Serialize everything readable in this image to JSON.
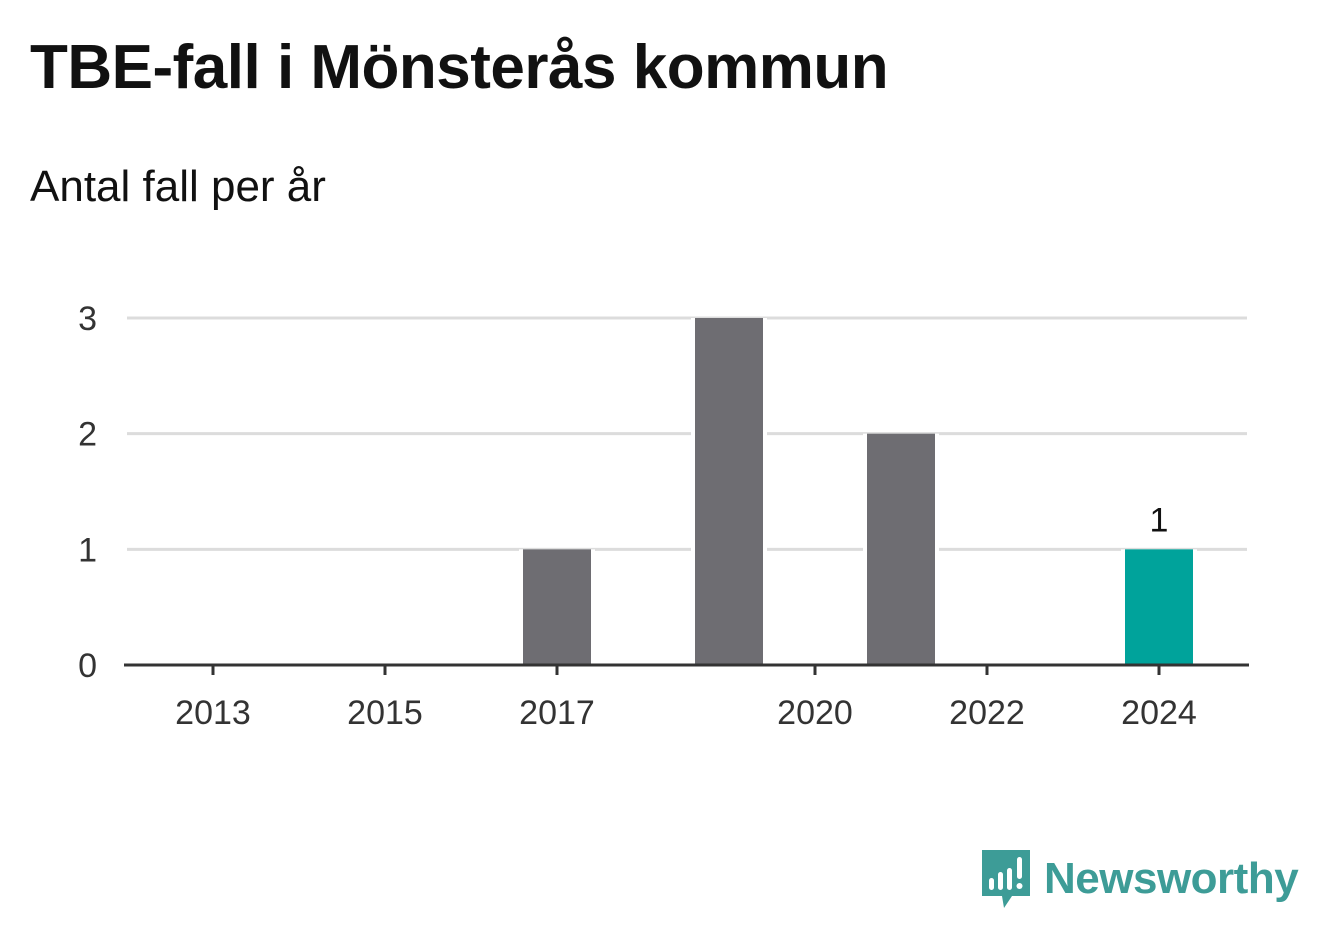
{
  "chart_data": {
    "type": "bar",
    "title": "TBE-fall i Mönsterås kommun",
    "subtitle": "Antal fall per år",
    "categories": [
      "2013",
      "2014",
      "2015",
      "2016",
      "2017",
      "2018",
      "2019",
      "2020",
      "2021",
      "2022",
      "2023",
      "2024"
    ],
    "values": [
      0,
      0,
      0,
      0,
      1,
      0,
      3,
      0,
      2,
      0,
      0,
      1
    ],
    "x_tick_labels": [
      "2013",
      "2015",
      "2017",
      "2020",
      "2022",
      "2024"
    ],
    "y_ticks": [
      "0",
      "1",
      "2",
      "3"
    ],
    "ylim": [
      0,
      3
    ],
    "grid": true,
    "highlight_category": "2024",
    "highlight_value_label": "1",
    "colors": {
      "bar": "#6e6d72",
      "highlight": "#00a39b",
      "grid": "#dcdcdc",
      "axis": "#333333"
    }
  },
  "brand": {
    "name": "Newsworthy",
    "icon": "newsworthy-logo-icon",
    "color": "#3d9c97"
  }
}
